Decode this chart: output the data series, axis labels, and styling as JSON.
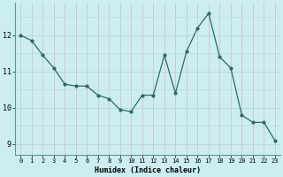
{
  "x": [
    0,
    1,
    2,
    3,
    4,
    5,
    6,
    7,
    8,
    9,
    10,
    11,
    12,
    13,
    14,
    15,
    16,
    17,
    18,
    19,
    20,
    21,
    22,
    23
  ],
  "y": [
    12.0,
    11.85,
    11.45,
    11.1,
    10.65,
    10.6,
    10.6,
    10.35,
    10.25,
    9.95,
    9.9,
    10.35,
    10.35,
    11.45,
    10.4,
    11.55,
    12.2,
    12.6,
    11.4,
    11.1,
    9.8,
    9.6,
    9.6,
    9.1
  ],
  "line_color": "#2d6b5e",
  "marker_color": "#2d6b5e",
  "bg_color": "#cceef2",
  "grid_color": "#b8d8d8",
  "xlabel": "Humidex (Indice chaleur)",
  "ylim": [
    8.7,
    12.9
  ],
  "xlim": [
    -0.5,
    23.5
  ],
  "yticks": [
    9,
    10,
    11,
    12
  ],
  "xticks": [
    0,
    1,
    2,
    3,
    4,
    5,
    6,
    7,
    8,
    9,
    10,
    11,
    12,
    13,
    14,
    15,
    16,
    17,
    18,
    19,
    20,
    21,
    22,
    23
  ]
}
